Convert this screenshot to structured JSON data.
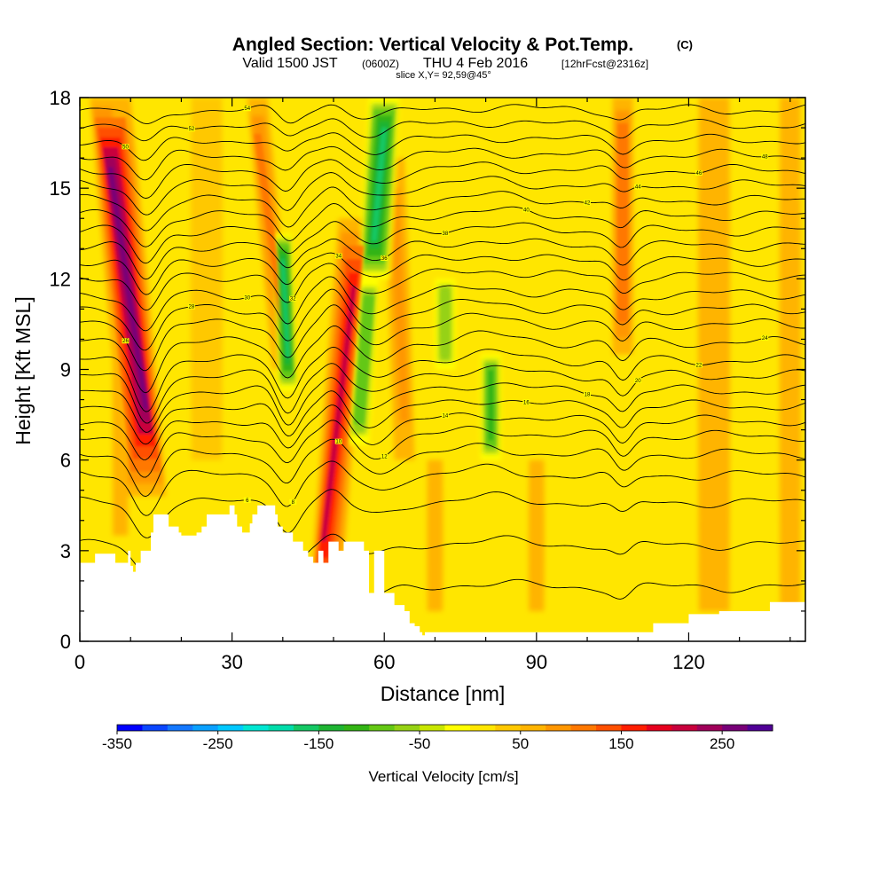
{
  "chart_data": {
    "type": "heatmap",
    "title": "Angled Section: Vertical Velocity & Pot.Temp.",
    "title_suffix": "(C)",
    "subtitle": {
      "valid": "Valid 1500 JST",
      "utc": "(0600Z)",
      "date": "THU 4 Feb 2016",
      "forecast": "[12hrFcst@2316z]"
    },
    "slice_label": "slice X,Y= 92,59@45°",
    "xlabel": "Distance [nm]",
    "ylabel": "Height [Kft MSL]",
    "xlim": [
      0,
      143
    ],
    "ylim": [
      0,
      18
    ],
    "x_ticks": [
      0,
      30,
      60,
      90,
      120
    ],
    "x_tick_labels": [
      "0",
      "30",
      "60",
      "90",
      "120"
    ],
    "y_ticks": [
      0,
      3,
      6,
      9,
      12,
      15,
      18
    ],
    "y_tick_labels": [
      "0",
      "3",
      "6",
      "9",
      "12",
      "15",
      "18"
    ],
    "colorbar": {
      "label": "Vertical Velocity [cm/s]",
      "min": -350,
      "max": 300,
      "step": 25,
      "ticks": [
        -350,
        -250,
        -150,
        -50,
        50,
        150,
        250
      ],
      "tick_labels": [
        "-350",
        "-250",
        "-150",
        "-50",
        "50",
        "150",
        "250"
      ],
      "colors": [
        "#0000ff",
        "#0a46ff",
        "#1478ff",
        "#0aa0ff",
        "#00c8ff",
        "#00e6d2",
        "#00dcaa",
        "#14c864",
        "#1eb432",
        "#32b414",
        "#64c814",
        "#96d214",
        "#c8e600",
        "#ffff00",
        "#ffe600",
        "#ffc800",
        "#ffb400",
        "#ff9600",
        "#ff7800",
        "#ff5000",
        "#ff1e00",
        "#e6001e",
        "#c8003c",
        "#a0005a",
        "#780078",
        "#500096"
      ]
    },
    "background_w": 15,
    "updraft_bands": [
      {
        "x_bottom": 13,
        "x_top": 6,
        "y_bottom": 4.8,
        "y_top": 18,
        "peak_w": 260,
        "width_nm": 4
      },
      {
        "x_bottom": 8,
        "x_top": 8,
        "y_bottom": 3.5,
        "y_top": 18,
        "peak_w": 70,
        "width_nm": 1.5
      },
      {
        "x_bottom": 48,
        "x_top": 54,
        "y_bottom": 0.5,
        "y_top": 14,
        "peak_w": 200,
        "width_nm": 3
      },
      {
        "x_bottom": 40,
        "x_top": 35,
        "y_bottom": 9,
        "y_top": 18,
        "peak_w": 100,
        "width_nm": 2
      },
      {
        "x_bottom": 107,
        "x_top": 107,
        "y_bottom": 9.5,
        "y_top": 18,
        "peak_w": 120,
        "width_nm": 2
      },
      {
        "x_bottom": 64,
        "x_top": 62,
        "y_bottom": 6,
        "y_top": 16,
        "peak_w": 80,
        "width_nm": 2
      },
      {
        "x_bottom": 70,
        "x_top": 70,
        "y_bottom": 1,
        "y_top": 6,
        "peak_w": 55,
        "width_nm": 1.5
      },
      {
        "x_bottom": 90,
        "x_top": 90,
        "y_bottom": 1,
        "y_top": 6,
        "peak_w": 55,
        "width_nm": 1.5
      },
      {
        "x_bottom": 125,
        "x_top": 125,
        "y_bottom": 1,
        "y_top": 18,
        "peak_w": 50,
        "width_nm": 3
      },
      {
        "x_bottom": 140,
        "x_top": 140,
        "y_bottom": 1,
        "y_top": 18,
        "peak_w": 55,
        "width_nm": 2
      },
      {
        "x_bottom": 25,
        "x_top": 25,
        "y_bottom": 6,
        "y_top": 18,
        "peak_w": 40,
        "width_nm": 3
      }
    ],
    "downdraft_bands": [
      {
        "x_bottom": 41,
        "x_top": 40,
        "y_bottom": 8.3,
        "y_top": 13.5,
        "peak_w": -160,
        "width_nm": 1.8
      },
      {
        "x_bottom": 58,
        "x_top": 60,
        "y_bottom": 12,
        "y_top": 18,
        "peak_w": -170,
        "width_nm": 3
      },
      {
        "x_bottom": 55,
        "x_top": 57,
        "y_bottom": 6.5,
        "y_top": 12,
        "peak_w": -90,
        "width_nm": 2
      },
      {
        "x_bottom": 81,
        "x_top": 81,
        "y_bottom": 6,
        "y_top": 9.5,
        "peak_w": -110,
        "width_nm": 2
      },
      {
        "x_bottom": 72,
        "x_top": 72,
        "y_bottom": 9,
        "y_top": 12,
        "peak_w": -70,
        "width_nm": 2
      }
    ],
    "terrain_kft": [
      [
        0,
        2.6
      ],
      [
        3,
        2.6
      ],
      [
        3,
        2.9
      ],
      [
        7,
        2.9
      ],
      [
        7,
        2.6
      ],
      [
        9.5,
        2.6
      ],
      [
        9.5,
        3.0
      ],
      [
        10,
        3.0
      ],
      [
        10,
        2.5
      ],
      [
        10.5,
        2.5
      ],
      [
        10.5,
        2.3
      ],
      [
        11,
        2.3
      ],
      [
        11,
        2.6
      ],
      [
        12,
        2.6
      ],
      [
        12,
        3.0
      ],
      [
        14,
        3.0
      ],
      [
        14,
        3.6
      ],
      [
        14.5,
        3.6
      ],
      [
        14.5,
        4.2
      ],
      [
        17.5,
        4.2
      ],
      [
        17.5,
        3.8
      ],
      [
        19.5,
        3.8
      ],
      [
        19.5,
        3.6
      ],
      [
        20,
        3.6
      ],
      [
        20,
        3.5
      ],
      [
        23,
        3.5
      ],
      [
        23,
        3.6
      ],
      [
        24,
        3.6
      ],
      [
        24,
        3.8
      ],
      [
        25,
        3.8
      ],
      [
        25,
        4.2
      ],
      [
        29.5,
        4.2
      ],
      [
        29.5,
        4.5
      ],
      [
        30.5,
        4.5
      ],
      [
        30.5,
        4.2
      ],
      [
        31,
        4.2
      ],
      [
        31,
        3.8
      ],
      [
        32,
        3.8
      ],
      [
        32,
        3.6
      ],
      [
        33.5,
        3.6
      ],
      [
        33.5,
        3.9
      ],
      [
        34,
        3.9
      ],
      [
        34,
        4.2
      ],
      [
        35,
        4.2
      ],
      [
        35,
        4.5
      ],
      [
        38.5,
        4.5
      ],
      [
        38.5,
        4.2
      ],
      [
        39,
        4.2
      ],
      [
        39,
        3.8
      ],
      [
        40,
        3.8
      ],
      [
        40,
        3.6
      ],
      [
        42,
        3.6
      ],
      [
        42,
        3.3
      ],
      [
        44,
        3.3
      ],
      [
        44,
        3.0
      ],
      [
        45,
        3.0
      ],
      [
        45,
        2.8
      ],
      [
        46,
        2.8
      ],
      [
        46,
        2.6
      ],
      [
        47,
        2.6
      ],
      [
        47,
        3.0
      ],
      [
        48,
        3.0
      ],
      [
        48,
        2.6
      ],
      [
        49,
        2.6
      ],
      [
        49,
        3.3
      ],
      [
        51,
        3.3
      ],
      [
        51,
        3.0
      ],
      [
        52,
        3.0
      ],
      [
        52,
        3.3
      ],
      [
        56,
        3.3
      ],
      [
        56,
        3.0
      ],
      [
        57,
        3.0
      ],
      [
        57,
        1.6
      ],
      [
        58,
        1.6
      ],
      [
        58,
        3.0
      ],
      [
        60,
        3.0
      ],
      [
        60,
        1.6
      ],
      [
        62,
        1.6
      ],
      [
        62,
        1.2
      ],
      [
        64,
        1.2
      ],
      [
        64,
        1.0
      ],
      [
        65,
        1.0
      ],
      [
        65,
        0.6
      ],
      [
        66,
        0.6
      ],
      [
        66,
        0.5
      ],
      [
        67,
        0.5
      ],
      [
        67,
        0.3
      ],
      [
        67.5,
        0.3
      ],
      [
        67.5,
        0.2
      ],
      [
        68,
        0.2
      ],
      [
        68,
        0.3
      ],
      [
        113,
        0.3
      ],
      [
        113,
        0.6
      ],
      [
        120,
        0.6
      ],
      [
        120,
        0.9
      ],
      [
        126,
        0.9
      ],
      [
        126,
        1.0
      ],
      [
        136,
        1.0
      ],
      [
        136,
        1.3
      ],
      [
        143,
        1.3
      ]
    ],
    "theta_contours": [
      {
        "base_kft": 1.8,
        "label": "2"
      },
      {
        "base_kft": 3.2,
        "label": "4"
      },
      {
        "base_kft": 4.6,
        "label": "6"
      },
      {
        "base_kft": 5.5,
        "label": "8"
      },
      {
        "base_kft": 6.2,
        "label": "10"
      },
      {
        "base_kft": 6.8,
        "label": "12"
      },
      {
        "base_kft": 7.3,
        "label": "14"
      },
      {
        "base_kft": 7.8,
        "label": "16"
      },
      {
        "base_kft": 8.3,
        "label": "18"
      },
      {
        "base_kft": 8.8,
        "label": "20"
      },
      {
        "base_kft": 9.3,
        "label": "22"
      },
      {
        "base_kft": 9.9,
        "label": "24"
      },
      {
        "base_kft": 10.5,
        "label": "26"
      },
      {
        "base_kft": 11.0,
        "label": "28"
      },
      {
        "base_kft": 11.5,
        "label": "30"
      },
      {
        "base_kft": 12.1,
        "label": "32"
      },
      {
        "base_kft": 12.6,
        "label": "34"
      },
      {
        "base_kft": 13.1,
        "label": "36"
      },
      {
        "base_kft": 13.6,
        "label": "38"
      },
      {
        "base_kft": 14.1,
        "label": "40"
      },
      {
        "base_kft": 14.6,
        "label": "42"
      },
      {
        "base_kft": 15.1,
        "label": "44"
      },
      {
        "base_kft": 15.6,
        "label": "46"
      },
      {
        "base_kft": 16.1,
        "label": "48"
      },
      {
        "base_kft": 16.6,
        "label": "50"
      },
      {
        "base_kft": 17.1,
        "label": "52"
      },
      {
        "base_kft": 17.6,
        "label": "54"
      }
    ]
  }
}
